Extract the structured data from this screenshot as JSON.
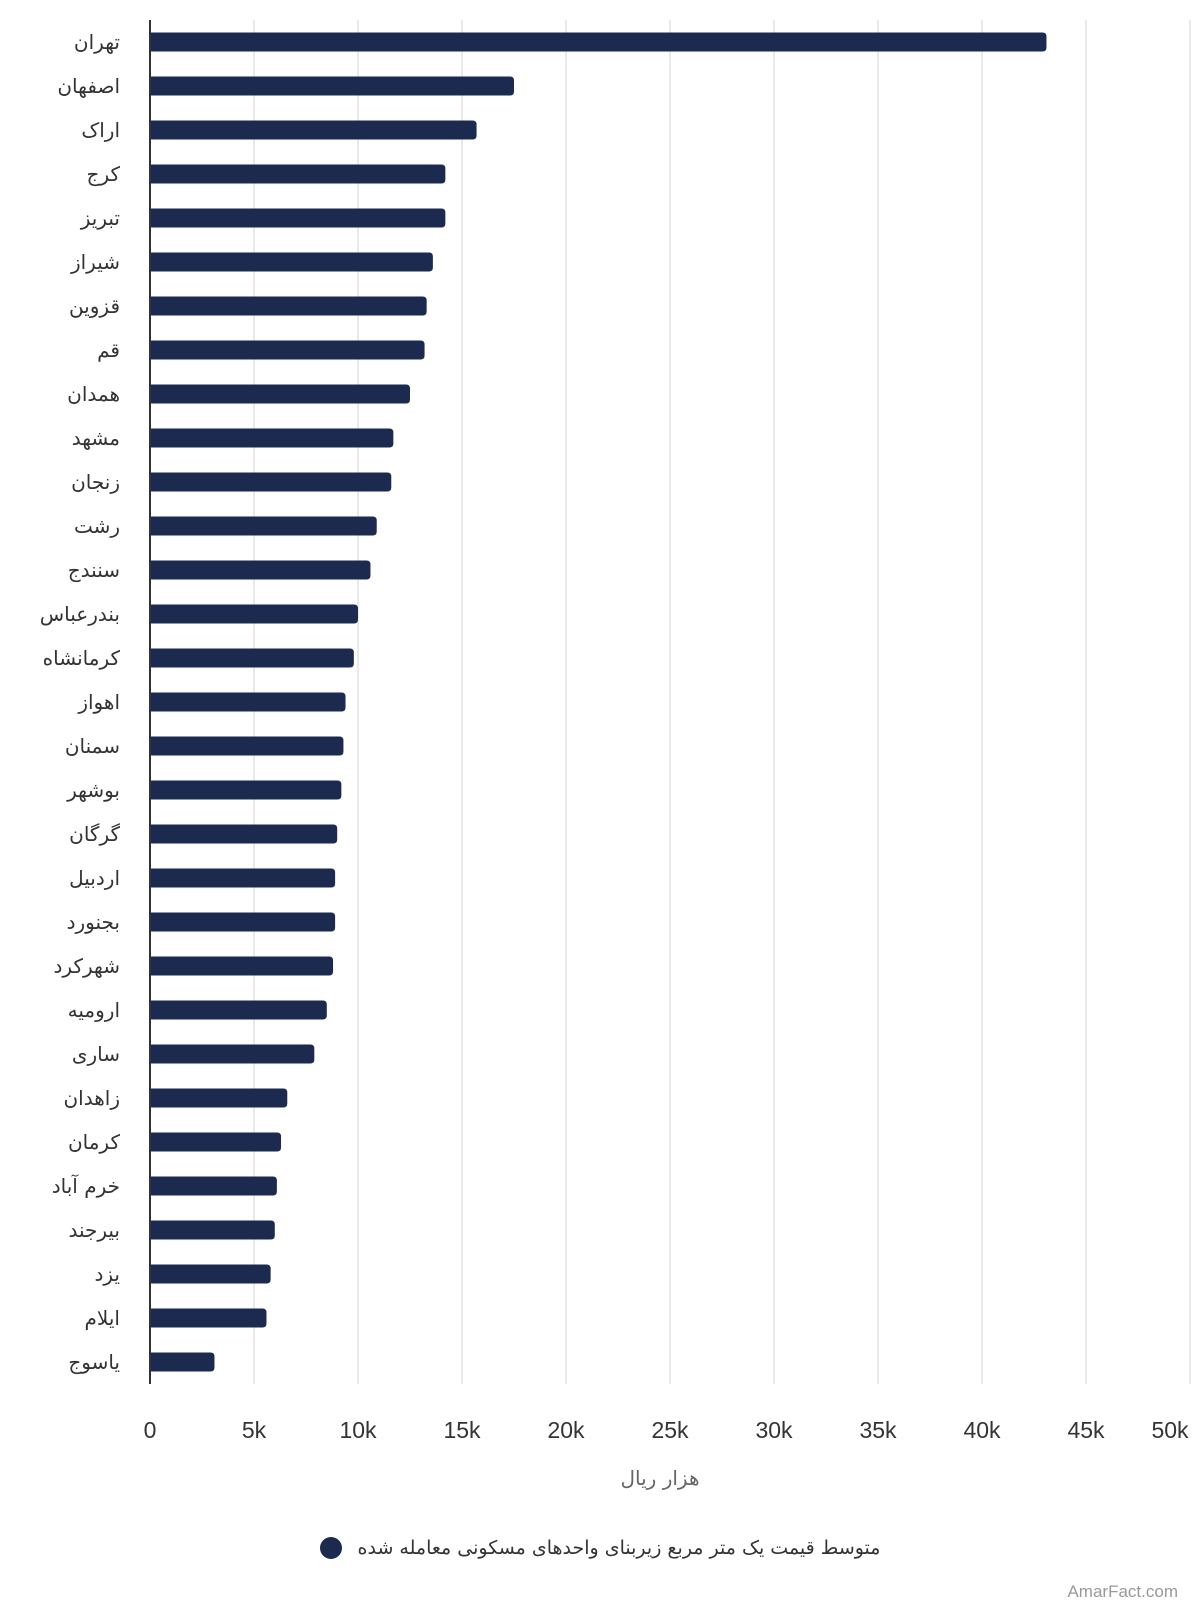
{
  "chart_data": {
    "type": "bar",
    "orientation": "horizontal",
    "categories": [
      "تهران",
      "اصفهان",
      "اراک",
      "کرج",
      "تبریز",
      "شیراز",
      "قزوین",
      "قم",
      "همدان",
      "مشهد",
      "زنجان",
      "رشت",
      "سنندج",
      "بندرعباس",
      "کرمانشاه",
      "اهواز",
      "سمنان",
      "بوشهر",
      "گرگان",
      "اردبیل",
      "بجنورد",
      "شهرکرد",
      "ارومیه",
      "ساری",
      "زاهدان",
      "کرمان",
      "خرم آباد",
      "بیرجند",
      "یزد",
      "ایلام",
      "یاسوج"
    ],
    "series": [
      {
        "name": "متوسط قیمت یک متر مربع زیربنای واحدهای مسکونی معامله شده",
        "color": "#1c2a4f",
        "values": [
          43100,
          17500,
          15700,
          14200,
          14200,
          13600,
          13300,
          13200,
          12500,
          11700,
          11600,
          10900,
          10600,
          10000,
          9800,
          9400,
          9300,
          9200,
          9000,
          8900,
          8900,
          8800,
          8500,
          7900,
          6600,
          6300,
          6100,
          6000,
          5800,
          5600,
          3100
        ]
      }
    ],
    "xlim": [
      0,
      50000
    ],
    "xticks": [
      0,
      5000,
      10000,
      15000,
      20000,
      25000,
      30000,
      35000,
      40000,
      45000,
      50000
    ],
    "xtick_labels": [
      "0",
      "5k",
      "10k",
      "15k",
      "20k",
      "25k",
      "30k",
      "35k",
      "40k",
      "45k",
      "50k"
    ],
    "xlabel": "هزار ریال",
    "ylabel": "",
    "grid": true,
    "legend_position": "bottom"
  },
  "credit": "AmarFact.com"
}
